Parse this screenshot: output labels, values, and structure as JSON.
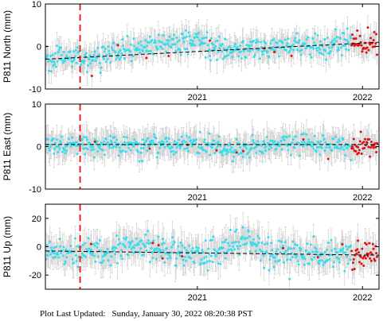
{
  "chart_data": [
    {
      "type": "scatter",
      "ylabel": "P811 North (mm)",
      "ylim": [
        -10,
        10
      ],
      "yticks": [
        -10,
        0,
        10
      ],
      "xlim": [
        2020.08,
        2022.1
      ],
      "xticks": [
        2021.0,
        2022.0
      ],
      "xticklabels": [
        "2021",
        "2022"
      ],
      "event_line_x": 2020.29,
      "trend": {
        "x": [
          2020.08,
          2022.1
        ],
        "y": [
          -3.0,
          1.0
        ]
      },
      "noise_mm": 1.3,
      "error_bar_mm": 2.5,
      "bumps": [
        {
          "x": 2020.75,
          "y": 2.0,
          "w": 0.18
        },
        {
          "x": 2021.0,
          "y": 2.0,
          "w": 0.12
        }
      ],
      "rapid_start_x": 2021.93,
      "grid": false,
      "legend": "none"
    },
    {
      "type": "scatter",
      "ylabel": "P811 East (mm)",
      "ylim": [
        -10,
        10
      ],
      "yticks": [
        -10,
        0,
        10
      ],
      "xlim": [
        2020.08,
        2022.1
      ],
      "xticks": [
        2021.0,
        2022.0
      ],
      "xticklabels": [
        "2021",
        "2022"
      ],
      "event_line_x": 2020.29,
      "trend": {
        "x": [
          2020.08,
          2022.1
        ],
        "y": [
          0.5,
          0.5
        ]
      },
      "noise_mm": 1.2,
      "error_bar_mm": 2.8,
      "bumps": [
        {
          "x": 2021.2,
          "y": -1.5,
          "w": 0.1
        }
      ],
      "rapid_start_x": 2021.93,
      "grid": false,
      "legend": "none"
    },
    {
      "type": "scatter",
      "ylabel": "P811 Up (mm)",
      "ylim": [
        -30,
        30
      ],
      "yticks": [
        -20,
        0,
        20
      ],
      "xlim": [
        2020.08,
        2022.1
      ],
      "xticks": [
        2021.0,
        2022.0
      ],
      "xticklabels": [
        "2021",
        "2022"
      ],
      "event_line_x": 2020.29,
      "trend": {
        "x": [
          2020.08,
          2022.1
        ],
        "y": [
          -3.0,
          -6.0
        ]
      },
      "noise_mm": 5.0,
      "error_bar_mm": 9.0,
      "bumps": [
        {
          "x": 2020.7,
          "y": 4.0,
          "w": 0.12
        },
        {
          "x": 2021.28,
          "y": 8.0,
          "w": 0.12
        }
      ],
      "rapid_start_x": 2021.93,
      "grid": false,
      "legend": "none"
    }
  ],
  "colors": {
    "points": "#33ddee",
    "rapid_points": "#dd1111",
    "error_bars": "#c8c8c8",
    "trend": "#000000",
    "event_line": "#ee1111"
  },
  "footer": {
    "label": "Plot Last Updated:",
    "value": "Sunday, January 30, 2022 08:20:38 PST"
  }
}
